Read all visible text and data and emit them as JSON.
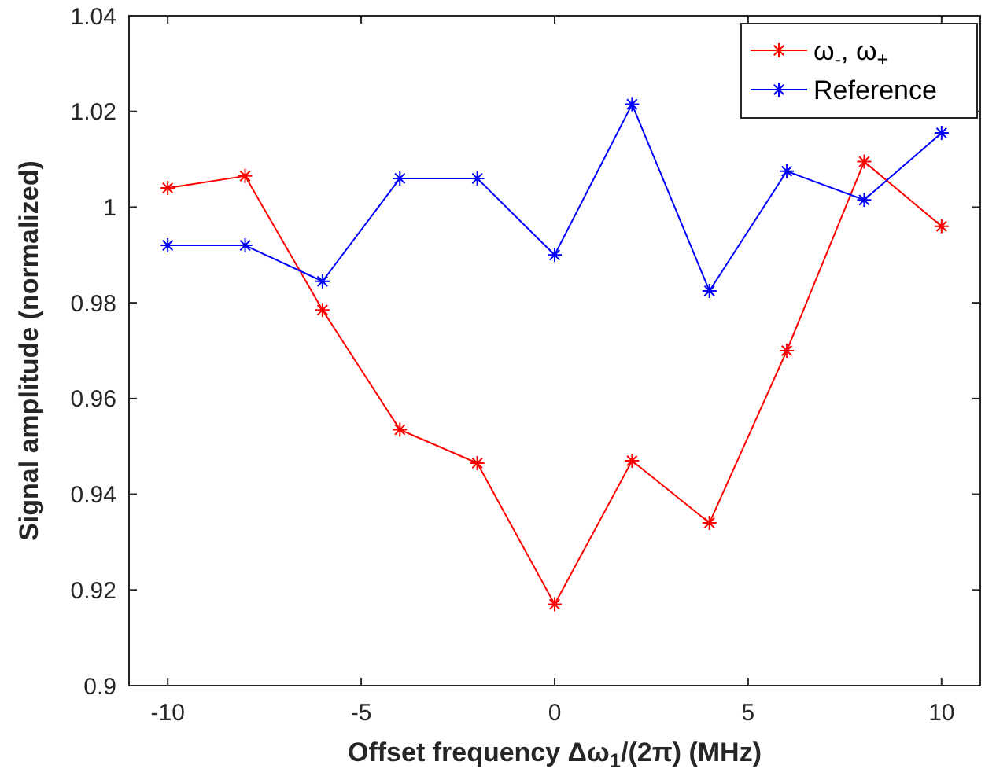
{
  "chart_data": {
    "type": "line",
    "xlabel": "Offset frequency Δω$_{1}$/(2π) (MHz)",
    "ylabel": "Signal amplitude (normalized)",
    "x": [
      -10,
      -8,
      -6,
      -4,
      -2,
      0,
      2,
      4,
      6,
      8,
      10
    ],
    "series": [
      {
        "name": "ω$_{-}$, ω$_{+}$",
        "color": "#ff0000",
        "values": [
          1.004,
          1.0065,
          0.9785,
          0.9535,
          0.9465,
          0.917,
          0.947,
          0.934,
          0.97,
          1.0095,
          0.996
        ]
      },
      {
        "name": "Reference",
        "color": "#0000ff",
        "values": [
          0.992,
          0.992,
          0.9845,
          1.006,
          1.006,
          0.99,
          1.0215,
          0.9825,
          1.0075,
          1.0015,
          1.0155
        ]
      }
    ],
    "xlim": [
      -11,
      11
    ],
    "xticks": [
      -10,
      -5,
      0,
      5,
      10
    ],
    "ylim": [
      0.9,
      1.04
    ],
    "yticks": [
      0.9,
      0.92,
      0.94,
      0.96,
      0.98,
      1,
      1.02,
      1.04
    ],
    "marker": "cross",
    "line_style": "solid",
    "grid": false,
    "legend": "top right"
  }
}
